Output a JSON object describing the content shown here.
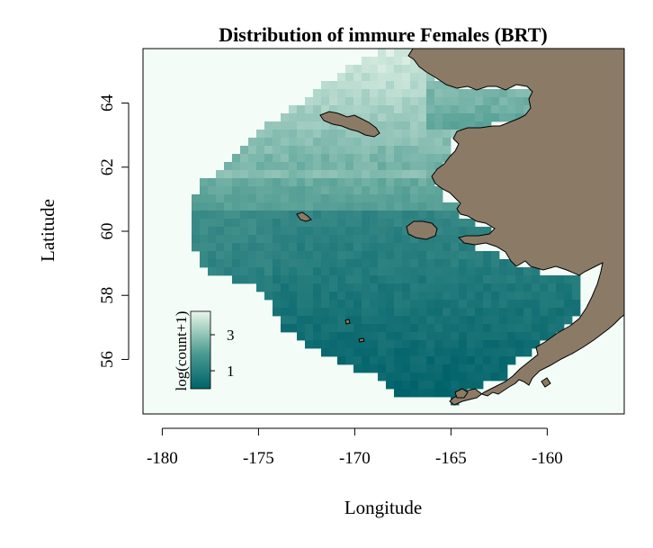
{
  "title": "Distribution of immure Females (BRT)",
  "xlabel": "Longitude",
  "ylabel": "Latitude",
  "legend": {
    "title": "log(count+1)",
    "ticks": [
      {
        "label": "1",
        "value": 1
      },
      {
        "label": "3",
        "value": 3
      }
    ],
    "range": [
      0,
      4.3
    ],
    "placement": "bottom-left"
  },
  "colors": {
    "land": "#8b7b66",
    "land_border": "#000000",
    "background": "#f3fcf6",
    "low": "#00626a",
    "mid": "#5fa59a",
    "high": "#e7f6ea"
  },
  "chart_data": {
    "type": "heatmap",
    "title": "Distribution of immure Females (BRT)",
    "xlabel": "Longitude",
    "ylabel": "Latitude",
    "xlim": [
      -181,
      -156
    ],
    "ylim": [
      54.3,
      65.7
    ],
    "xticks": [
      {
        "label": "-180",
        "value": -180
      },
      {
        "label": "-175",
        "value": -175
      },
      {
        "label": "-170",
        "value": -170
      },
      {
        "label": "-165",
        "value": -165
      },
      {
        "label": "-160",
        "value": -160
      }
    ],
    "yticks": [
      {
        "label": "56",
        "value": 56
      },
      {
        "label": "58",
        "value": 58
      },
      {
        "label": "60",
        "value": 60
      },
      {
        "label": "62",
        "value": 62
      },
      {
        "label": "64",
        "value": 64
      }
    ],
    "grid": false
  }
}
